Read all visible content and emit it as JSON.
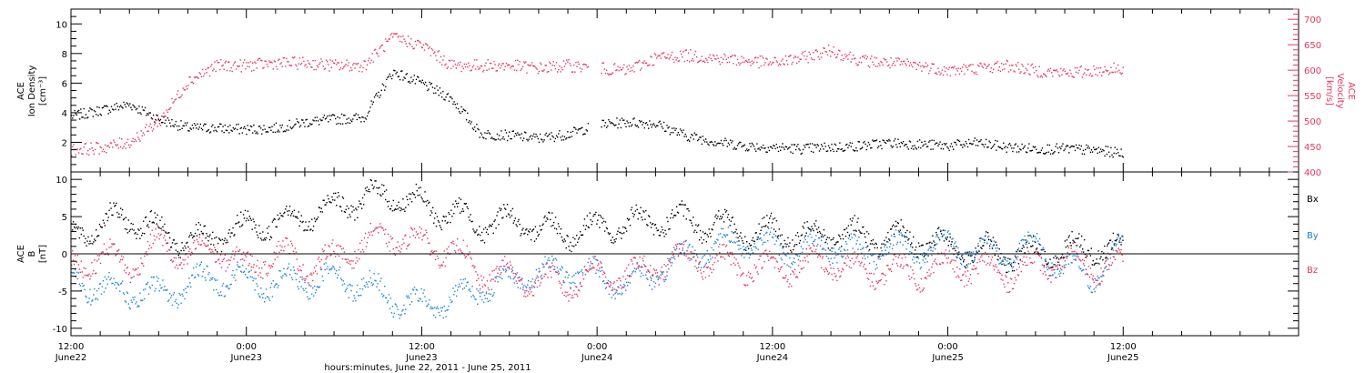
{
  "colors": {
    "black": "#000000",
    "red": "#e8365f",
    "blue": "#1e83d8"
  },
  "chart_data": [
    {
      "type": "scatter",
      "panel": "density-velocity",
      "ylabel_left": [
        "ACE",
        "Ion Density",
        "[cm⁻³]"
      ],
      "ylabel_right": [
        "ACE",
        "Velocity",
        "[km/s]"
      ],
      "ylim_left": [
        0,
        11
      ],
      "ylim_right": [
        400,
        720
      ],
      "yticks_left": [
        "2",
        "4",
        "6",
        "8",
        "10"
      ],
      "yticks_right": [
        "400",
        "450",
        "500",
        "550",
        "600",
        "650",
        "700"
      ],
      "series": [
        {
          "axis": "left",
          "color": "#000000",
          "x": [
            0,
            2,
            4,
            6,
            8,
            10,
            12,
            14,
            16,
            18,
            20,
            22,
            24,
            26,
            28,
            30,
            32,
            34,
            36,
            38,
            40,
            42,
            44,
            46,
            48,
            50,
            52,
            54,
            56,
            58,
            60,
            62,
            64,
            66,
            68,
            70,
            72
          ],
          "y": [
            3.8,
            4.2,
            4.6,
            3.6,
            3.0,
            3.0,
            2.9,
            3.0,
            3.4,
            3.6,
            3.7,
            6.8,
            6.0,
            5.0,
            2.6,
            2.5,
            2.3,
            2.6,
            3.2,
            3.4,
            3.3,
            2.5,
            2.1,
            1.8,
            1.7,
            1.6,
            1.7,
            1.8,
            2.0,
            1.9,
            1.8,
            2.0,
            1.7,
            1.6,
            1.6,
            1.5,
            1.3
          ]
        },
        {
          "axis": "right",
          "color": "#e8365f",
          "x": [
            0,
            2,
            4,
            6,
            8,
            10,
            12,
            14,
            16,
            18,
            20,
            22,
            24,
            26,
            28,
            30,
            32,
            34,
            36,
            38,
            40,
            42,
            44,
            46,
            48,
            50,
            52,
            54,
            56,
            58,
            60,
            62,
            64,
            66,
            68,
            70,
            72
          ],
          "y": [
            445,
            448,
            460,
            500,
            580,
            610,
            610,
            615,
            615,
            610,
            610,
            665,
            650,
            610,
            610,
            610,
            605,
            610,
            605,
            600,
            625,
            630,
            625,
            620,
            615,
            625,
            640,
            620,
            615,
            610,
            600,
            605,
            610,
            600,
            595,
            600,
            605
          ]
        }
      ]
    },
    {
      "type": "scatter",
      "panel": "magnetic-field",
      "ylabel_left": [
        "ACE",
        "B",
        "[nT]"
      ],
      "ylim": [
        -11,
        11
      ],
      "yticks": [
        "10",
        "5",
        "0",
        "-5",
        "-10"
      ],
      "series": [
        {
          "name": "Bx",
          "color": "#000000",
          "x": [
            0,
            2,
            4,
            6,
            8,
            10,
            12,
            14,
            16,
            18,
            20,
            22,
            24,
            26,
            28,
            30,
            32,
            34,
            36,
            38,
            40,
            42,
            44,
            46,
            48,
            50,
            52,
            54,
            56,
            58,
            60,
            62,
            64,
            66,
            68,
            70,
            72
          ],
          "y": [
            2.5,
            4.0,
            5.0,
            3.0,
            1.5,
            2.5,
            3.5,
            4.5,
            5.0,
            6.5,
            7.5,
            8.0,
            6.5,
            5.5,
            4.0,
            4.5,
            3.5,
            3.0,
            3.5,
            4.0,
            4.5,
            4.5,
            4.0,
            3.0,
            3.0,
            2.5,
            3.0,
            2.5,
            2.0,
            2.0,
            1.0,
            0.5,
            0.0,
            0.0,
            0.5,
            1.0,
            0.5
          ]
        },
        {
          "name": "By",
          "color": "#1e83d8",
          "x": [
            0,
            2,
            4,
            6,
            8,
            10,
            12,
            14,
            16,
            18,
            20,
            22,
            24,
            26,
            28,
            30,
            32,
            34,
            36,
            38,
            40,
            42,
            44,
            46,
            48,
            50,
            52,
            54,
            56,
            58,
            60,
            62,
            64,
            66,
            68,
            70,
            72
          ],
          "y": [
            -3.5,
            -4.5,
            -5.0,
            -5.5,
            -4.0,
            -3.0,
            -3.5,
            -4.0,
            -3.5,
            -3.0,
            -4.0,
            -6.0,
            -7.0,
            -6.0,
            -4.5,
            -3.5,
            -2.5,
            -2.0,
            -3.0,
            -4.0,
            -2.5,
            0.0,
            1.0,
            2.0,
            1.0,
            0.5,
            1.5,
            0.0,
            1.0,
            0.5,
            1.5,
            0.5,
            0.0,
            1.0,
            -2.0,
            -3.0,
            1.5
          ]
        },
        {
          "name": "Bz",
          "color": "#e8365f",
          "x": [
            0,
            2,
            4,
            6,
            8,
            10,
            12,
            14,
            16,
            18,
            20,
            22,
            24,
            26,
            28,
            30,
            32,
            34,
            36,
            38,
            40,
            42,
            44,
            46,
            48,
            50,
            52,
            54,
            56,
            58,
            60,
            62,
            64,
            66,
            68,
            70,
            72
          ],
          "y": [
            -2.0,
            0.0,
            -1.5,
            1.5,
            -0.5,
            1.0,
            -2.0,
            0.5,
            -1.5,
            -0.5,
            1.5,
            2.5,
            1.5,
            0.5,
            -2.5,
            -3.0,
            -3.5,
            -4.0,
            -2.5,
            -3.0,
            -1.5,
            -0.5,
            -1.0,
            -1.5,
            -2.0,
            -1.5,
            -1.0,
            -2.5,
            -2.0,
            -2.5,
            -1.5,
            -2.0,
            -2.5,
            -1.5,
            -1.0,
            -1.5,
            -1.5
          ]
        }
      ],
      "legend": [
        "Bx",
        "By",
        "Bz"
      ]
    }
  ],
  "x_axis": {
    "range_hours": [
      0,
      84
    ],
    "tick_times": [
      "12:00",
      "0:00",
      "12:00",
      "0:00",
      "12:00",
      "0:00",
      "12:00"
    ],
    "tick_dates": [
      "June22",
      "June23",
      "June23",
      "June24",
      "June24",
      "June25",
      "June25"
    ],
    "title": "hours:minutes, June 22, 2011 - June 25, 2011"
  }
}
